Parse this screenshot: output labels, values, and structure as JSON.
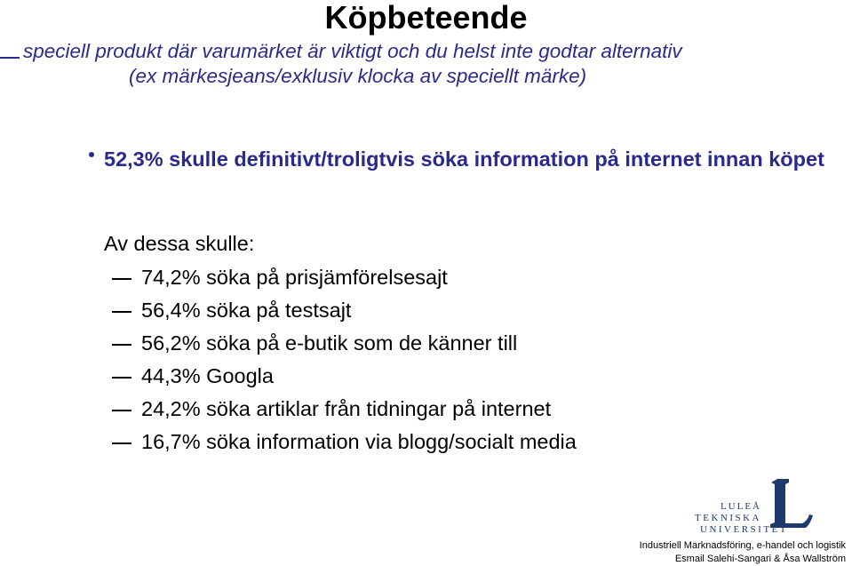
{
  "slide": {
    "title": "Köpbeteende",
    "subtitle_line1": "speciell produkt där varumärket är viktigt och du helst inte godtar alternativ",
    "subtitle_line2": "(ex märkesjeans/exklusiv klocka av speciellt märke)",
    "main_bullet": "52,3% skulle definitivt/troligtvis söka information på internet innan köpet",
    "intro": "Av dessa skulle:",
    "sub_items": [
      "74,2% söka på prisjämförelsesajt",
      "56,4% söka på testsajt",
      "56,2% söka på e-butik som de känner till",
      "44,3% Googla",
      "24,2% söka artiklar från tidningar på internet",
      "16,7% söka information via blogg/socialt media"
    ]
  },
  "logo": {
    "line1": "LULEÅ",
    "line2": "TEKNISKA",
    "line3": "UNIVERSITET",
    "color": "#1d3a6b"
  },
  "footer": {
    "line1": "Industriell Marknadsföring, e-handel och logistik",
    "line2": "Esmail Salehi-Sangari & Åsa Wallström"
  },
  "colors": {
    "accent": "#2a2a8c"
  }
}
